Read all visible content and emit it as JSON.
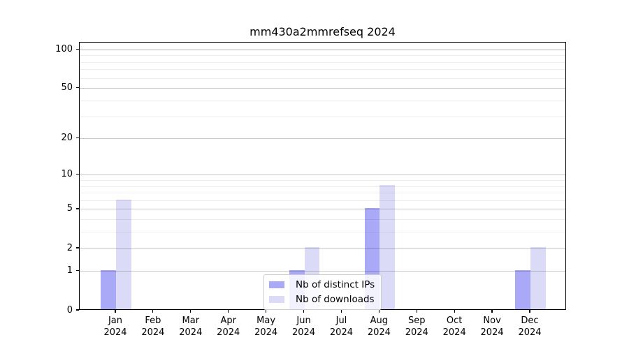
{
  "chart_data": {
    "type": "bar",
    "title": "mm430a2mmrefseq 2024",
    "year_label": "2024",
    "categories": [
      "Jan",
      "Feb",
      "Mar",
      "Apr",
      "May",
      "Jun",
      "Jul",
      "Aug",
      "Sep",
      "Oct",
      "Nov",
      "Dec"
    ],
    "series": [
      {
        "name": "Nb of distinct IPs",
        "color": "#a9a9f7",
        "values": [
          1,
          0,
          0,
          0,
          0,
          1,
          0,
          5,
          0,
          0,
          0,
          1
        ]
      },
      {
        "name": "Nb of downloads",
        "color": "#dbdbf8",
        "values": [
          6,
          0,
          0,
          0,
          0,
          2,
          0,
          8,
          0,
          0,
          0,
          2
        ]
      }
    ],
    "y_scale": "log10(1+v)",
    "y_major_ticks": [
      0,
      1,
      2,
      5,
      10,
      20,
      50,
      100
    ],
    "y_minor_ticks": [
      3,
      4,
      6,
      7,
      8,
      9,
      30,
      40,
      60,
      70,
      80,
      90
    ],
    "y_max": 113.9,
    "xlabel": "",
    "ylabel": "",
    "grid": "both",
    "legend_position": "lower center"
  }
}
